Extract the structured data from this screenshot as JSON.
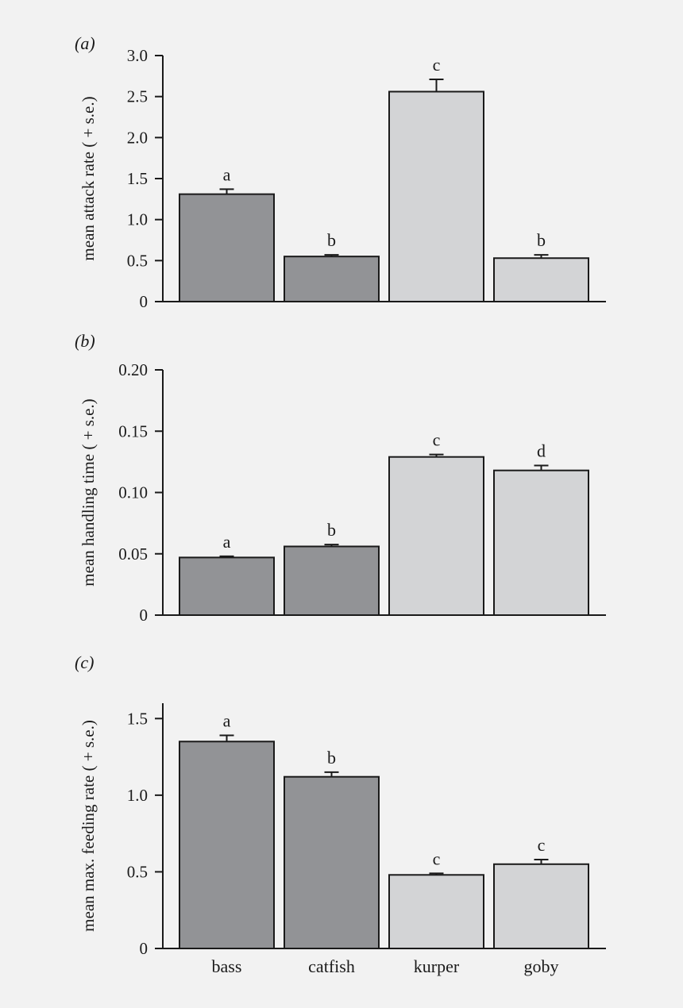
{
  "chart_data": [
    {
      "type": "bar",
      "panel_label": "(a)",
      "ylabel": "mean attack rate ( + s.e.)",
      "categories": [
        "bass",
        "catfish",
        "kurper",
        "goby"
      ],
      "values": [
        1.31,
        0.55,
        2.56,
        0.53
      ],
      "errors": [
        0.06,
        0.02,
        0.15,
        0.04
      ],
      "significance": [
        "a",
        "b",
        "c",
        "b"
      ],
      "bar_colors": [
        "#929396",
        "#929396",
        "#d3d4d6",
        "#d3d4d6"
      ],
      "ylim": [
        0,
        3.0
      ],
      "yticks": [
        0,
        0.5,
        1.0,
        1.5,
        2.0,
        2.5,
        3.0
      ],
      "ytick_labels": [
        "0",
        "0.5",
        "1.0",
        "1.5",
        "2.0",
        "2.5",
        "3.0"
      ],
      "show_xlabels": false
    },
    {
      "type": "bar",
      "panel_label": "(b)",
      "ylabel": "mean handling time ( + s.e.)",
      "categories": [
        "bass",
        "catfish",
        "kurper",
        "goby"
      ],
      "values": [
        0.047,
        0.056,
        0.129,
        0.118
      ],
      "errors": [
        0.001,
        0.0015,
        0.002,
        0.004
      ],
      "significance": [
        "a",
        "b",
        "c",
        "d"
      ],
      "bar_colors": [
        "#929396",
        "#929396",
        "#d3d4d6",
        "#d3d4d6"
      ],
      "ylim": [
        0,
        0.2
      ],
      "yticks": [
        0,
        0.05,
        0.1,
        0.15,
        0.2
      ],
      "ytick_labels": [
        "0",
        "0.05",
        "0.10",
        "0.15",
        "0.20"
      ],
      "show_xlabels": false
    },
    {
      "type": "bar",
      "panel_label": "(c)",
      "ylabel": "mean max. feeding rate ( + s.e.)",
      "categories": [
        "bass",
        "catfish",
        "kurper",
        "goby"
      ],
      "values": [
        1.35,
        1.12,
        0.48,
        0.55
      ],
      "errors": [
        0.04,
        0.03,
        0.01,
        0.03
      ],
      "significance": [
        "a",
        "b",
        "c",
        "c"
      ],
      "bar_colors": [
        "#929396",
        "#929396",
        "#d3d4d6",
        "#d3d4d6"
      ],
      "ylim": [
        0,
        1.6
      ],
      "yticks": [
        0,
        0.5,
        1.0,
        1.5
      ],
      "ytick_labels": [
        "0",
        "0.5",
        "1.0",
        "1.5"
      ],
      "show_xlabels": true
    }
  ]
}
